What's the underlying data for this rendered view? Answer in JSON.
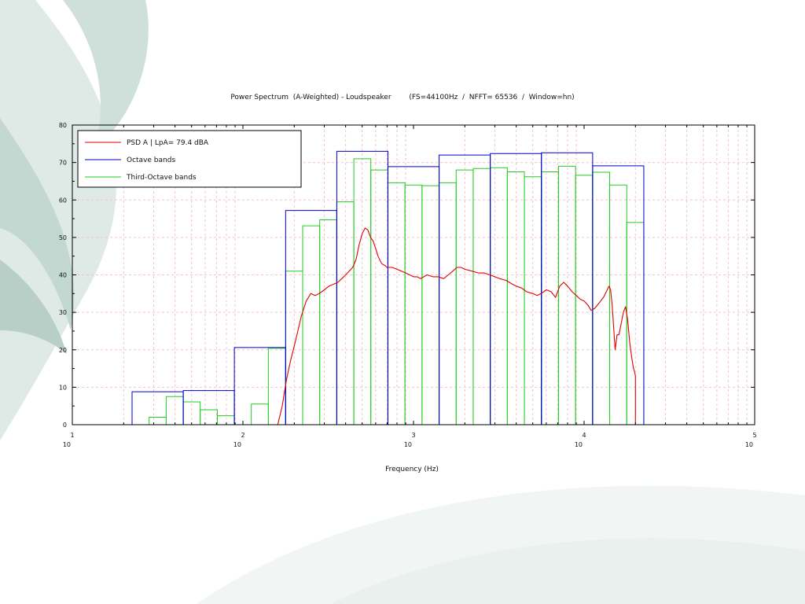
{
  "chart_data": {
    "type": "line",
    "title": "Power Spectrum  (A-Weighted) - Loudspeaker        (FS=44100Hz  /  NFFT= 65536  /  Window=hn)",
    "xlabel": "Frequency (Hz)",
    "ylabel": "",
    "x_scale": "log",
    "xlim": [
      10,
      100000
    ],
    "ylim": [
      0,
      80
    ],
    "grid": true,
    "legend_position": "top-left",
    "x_tick_labels": [
      {
        "base": "10",
        "exp": "1",
        "value": 10
      },
      {
        "base": "10",
        "exp": "2",
        "value": 100
      },
      {
        "base": "10",
        "exp": "3",
        "value": 1000
      },
      {
        "base": "10",
        "exp": "4",
        "value": 10000
      },
      {
        "base": "10",
        "exp": "5",
        "value": 100000
      }
    ],
    "y_tick_labels": [
      "0",
      "10",
      "20",
      "30",
      "40",
      "50",
      "60",
      "70",
      "80"
    ],
    "legend": [
      "PSD A | LpA= 79.4 dBA",
      "Octave bands",
      "Third-Octave bands"
    ],
    "colors": {
      "psd": "#e00000",
      "octave": "#0000cc",
      "third_octave": "#22cc22"
    },
    "octave_bands": [
      {
        "lo": 22.4,
        "hi": 44.7,
        "value": 8.8
      },
      {
        "lo": 44.7,
        "hi": 89.1,
        "value": 9.1
      },
      {
        "lo": 89.1,
        "hi": 178,
        "value": 20.6
      },
      {
        "lo": 178,
        "hi": 355,
        "value": 57.2
      },
      {
        "lo": 355,
        "hi": 708,
        "value": 73.0
      },
      {
        "lo": 708,
        "hi": 1413,
        "value": 68.9
      },
      {
        "lo": 1413,
        "hi": 2818,
        "value": 72.0
      },
      {
        "lo": 2818,
        "hi": 5623,
        "value": 72.4
      },
      {
        "lo": 5623,
        "hi": 11220,
        "value": 72.6
      },
      {
        "lo": 11220,
        "hi": 22387,
        "value": 69.1
      }
    ],
    "third_octave_bands": [
      {
        "lo": 28.2,
        "hi": 35.5,
        "value": 2.0
      },
      {
        "lo": 35.5,
        "hi": 44.7,
        "value": 7.5
      },
      {
        "lo": 44.7,
        "hi": 56.2,
        "value": 6.1
      },
      {
        "lo": 56.2,
        "hi": 70.8,
        "value": 4.0
      },
      {
        "lo": 70.8,
        "hi": 89.1,
        "value": 2.4
      },
      {
        "lo": 112,
        "hi": 141,
        "value": 5.5
      },
      {
        "lo": 141,
        "hi": 178,
        "value": 20.4
      },
      {
        "lo": 178,
        "hi": 224,
        "value": 41.0
      },
      {
        "lo": 224,
        "hi": 282,
        "value": 53.1
      },
      {
        "lo": 282,
        "hi": 355,
        "value": 54.7
      },
      {
        "lo": 355,
        "hi": 447,
        "value": 59.5
      },
      {
        "lo": 447,
        "hi": 562,
        "value": 71.0
      },
      {
        "lo": 562,
        "hi": 708,
        "value": 68.0
      },
      {
        "lo": 708,
        "hi": 891,
        "value": 64.6
      },
      {
        "lo": 891,
        "hi": 1122,
        "value": 64.0
      },
      {
        "lo": 1122,
        "hi": 1413,
        "value": 63.8
      },
      {
        "lo": 1413,
        "hi": 1778,
        "value": 64.6
      },
      {
        "lo": 1778,
        "hi": 2239,
        "value": 68.0
      },
      {
        "lo": 2239,
        "hi": 2818,
        "value": 68.4
      },
      {
        "lo": 2818,
        "hi": 3548,
        "value": 68.6
      },
      {
        "lo": 3548,
        "hi": 4467,
        "value": 67.5
      },
      {
        "lo": 4467,
        "hi": 5623,
        "value": 66.2
      },
      {
        "lo": 5623,
        "hi": 7079,
        "value": 67.5
      },
      {
        "lo": 7079,
        "hi": 8913,
        "value": 69.0
      },
      {
        "lo": 8913,
        "hi": 11220,
        "value": 66.6
      },
      {
        "lo": 11220,
        "hi": 14125,
        "value": 67.4
      },
      {
        "lo": 14125,
        "hi": 17783,
        "value": 64.0
      },
      {
        "lo": 17783,
        "hi": 22387,
        "value": 54.0
      }
    ],
    "psd_curve": {
      "x": [
        160,
        170,
        180,
        190,
        200,
        210,
        220,
        235,
        250,
        265,
        280,
        300,
        320,
        340,
        360,
        380,
        400,
        420,
        440,
        460,
        480,
        500,
        520,
        540,
        560,
        580,
        600,
        620,
        650,
        680,
        700,
        750,
        800,
        850,
        900,
        950,
        1000,
        1050,
        1100,
        1150,
        1200,
        1300,
        1400,
        1500,
        1600,
        1700,
        1800,
        1900,
        2000,
        2200,
        2400,
        2600,
        2800,
        3000,
        3200,
        3500,
        3800,
        4000,
        4300,
        4600,
        5000,
        5300,
        5600,
        6000,
        6400,
        6800,
        7200,
        7600,
        8000,
        8500,
        9000,
        9500,
        10000,
        10500,
        11000,
        11500,
        12000,
        12500,
        13000,
        13500,
        14000,
        14300,
        14600,
        14900,
        15200,
        15600,
        16000,
        16500,
        17000,
        17500,
        18000,
        18500,
        19000,
        19500,
        19800,
        20000,
        20000
      ],
      "y": [
        0,
        5,
        12,
        17,
        21,
        25,
        29,
        33,
        35,
        34.5,
        35,
        36,
        37,
        37.5,
        38,
        39,
        40,
        41,
        42,
        44,
        48,
        51,
        52.5,
        52,
        50,
        49,
        47,
        45,
        43,
        42.5,
        42,
        42,
        41.5,
        41,
        40.5,
        40,
        39.5,
        39.5,
        39,
        39.5,
        40,
        39.5,
        39.5,
        39,
        40,
        41,
        42,
        42,
        41.5,
        41,
        40.5,
        40.5,
        40,
        39.5,
        39,
        38.5,
        37.5,
        37,
        36.5,
        35.5,
        35,
        34.5,
        35,
        36,
        35.5,
        34,
        37,
        38,
        37,
        35.5,
        34.5,
        33.5,
        33,
        32,
        30.5,
        31,
        32,
        33,
        34,
        35.5,
        37,
        36,
        32,
        26,
        20,
        24,
        24,
        27,
        30,
        31.5,
        28,
        22,
        18,
        15,
        14,
        13,
        0
      ]
    }
  }
}
